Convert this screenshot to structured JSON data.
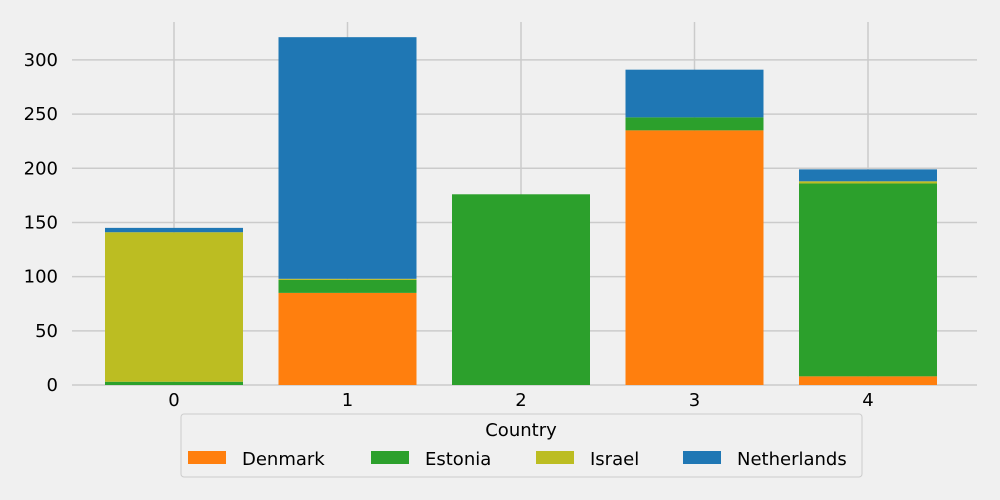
{
  "chart_data": {
    "type": "bar",
    "stacked": true,
    "categories": [
      "0",
      "1",
      "2",
      "3",
      "4"
    ],
    "series": [
      {
        "name": "Denmark",
        "color": "#ff7f0e",
        "values": [
          0,
          85,
          0,
          235,
          8
        ]
      },
      {
        "name": "Estonia",
        "color": "#2ca02c",
        "values": [
          3,
          12,
          176,
          12,
          178
        ]
      },
      {
        "name": "Israel",
        "color": "#bcbd22",
        "values": [
          138,
          1,
          0,
          0,
          2
        ]
      },
      {
        "name": "Netherlands",
        "color": "#1f77b4",
        "values": [
          4,
          223,
          0,
          44,
          11
        ]
      }
    ],
    "yticks": [
      0,
      50,
      100,
      150,
      200,
      250,
      300
    ],
    "ylim": [
      0,
      335
    ],
    "grid": true,
    "legend": {
      "title": "Country",
      "placement": "bottom-center"
    }
  }
}
